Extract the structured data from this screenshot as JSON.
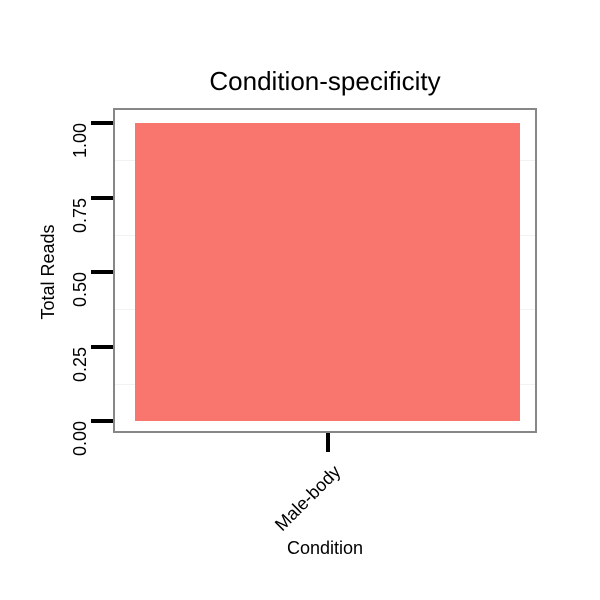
{
  "chart_data": {
    "type": "bar",
    "title": "Condition-specificity",
    "xlabel": "Condition",
    "ylabel": "Total Reads",
    "categories": [
      "Male-body"
    ],
    "values": [
      1.0
    ],
    "ylim": [
      0,
      1
    ],
    "yticks": {
      "values": [
        0,
        0.25,
        0.5,
        0.75,
        1.0
      ],
      "labels": [
        "0.00",
        "0.25",
        "0.50",
        "0.75",
        "1.00"
      ]
    },
    "bar_color": "#F8766D",
    "legend": "none",
    "grid": "faint minor horizontal gridlines only",
    "panel_border_color": "#878787",
    "background_color": "#FFFFFF"
  }
}
